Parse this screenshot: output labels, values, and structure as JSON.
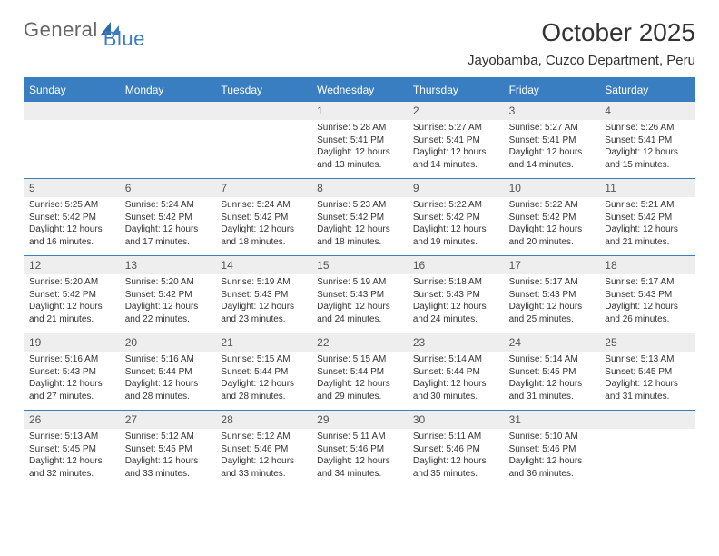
{
  "brand": {
    "part1": "General",
    "part2": "Blue"
  },
  "title": "October 2025",
  "location": "Jayobamba, Cuzco Department, Peru",
  "colors": {
    "header_bg": "#3a7ec2",
    "band_bg": "#eeeeee",
    "text": "#333333",
    "page_bg": "#ffffff"
  },
  "dow": [
    "Sunday",
    "Monday",
    "Tuesday",
    "Wednesday",
    "Thursday",
    "Friday",
    "Saturday"
  ],
  "weeks": [
    [
      {},
      {},
      {},
      {
        "n": "1",
        "sr": "Sunrise: 5:28 AM",
        "ss": "Sunset: 5:41 PM",
        "d1": "Daylight: 12 hours",
        "d2": "and 13 minutes."
      },
      {
        "n": "2",
        "sr": "Sunrise: 5:27 AM",
        "ss": "Sunset: 5:41 PM",
        "d1": "Daylight: 12 hours",
        "d2": "and 14 minutes."
      },
      {
        "n": "3",
        "sr": "Sunrise: 5:27 AM",
        "ss": "Sunset: 5:41 PM",
        "d1": "Daylight: 12 hours",
        "d2": "and 14 minutes."
      },
      {
        "n": "4",
        "sr": "Sunrise: 5:26 AM",
        "ss": "Sunset: 5:41 PM",
        "d1": "Daylight: 12 hours",
        "d2": "and 15 minutes."
      }
    ],
    [
      {
        "n": "5",
        "sr": "Sunrise: 5:25 AM",
        "ss": "Sunset: 5:42 PM",
        "d1": "Daylight: 12 hours",
        "d2": "and 16 minutes."
      },
      {
        "n": "6",
        "sr": "Sunrise: 5:24 AM",
        "ss": "Sunset: 5:42 PM",
        "d1": "Daylight: 12 hours",
        "d2": "and 17 minutes."
      },
      {
        "n": "7",
        "sr": "Sunrise: 5:24 AM",
        "ss": "Sunset: 5:42 PM",
        "d1": "Daylight: 12 hours",
        "d2": "and 18 minutes."
      },
      {
        "n": "8",
        "sr": "Sunrise: 5:23 AM",
        "ss": "Sunset: 5:42 PM",
        "d1": "Daylight: 12 hours",
        "d2": "and 18 minutes."
      },
      {
        "n": "9",
        "sr": "Sunrise: 5:22 AM",
        "ss": "Sunset: 5:42 PM",
        "d1": "Daylight: 12 hours",
        "d2": "and 19 minutes."
      },
      {
        "n": "10",
        "sr": "Sunrise: 5:22 AM",
        "ss": "Sunset: 5:42 PM",
        "d1": "Daylight: 12 hours",
        "d2": "and 20 minutes."
      },
      {
        "n": "11",
        "sr": "Sunrise: 5:21 AM",
        "ss": "Sunset: 5:42 PM",
        "d1": "Daylight: 12 hours",
        "d2": "and 21 minutes."
      }
    ],
    [
      {
        "n": "12",
        "sr": "Sunrise: 5:20 AM",
        "ss": "Sunset: 5:42 PM",
        "d1": "Daylight: 12 hours",
        "d2": "and 21 minutes."
      },
      {
        "n": "13",
        "sr": "Sunrise: 5:20 AM",
        "ss": "Sunset: 5:42 PM",
        "d1": "Daylight: 12 hours",
        "d2": "and 22 minutes."
      },
      {
        "n": "14",
        "sr": "Sunrise: 5:19 AM",
        "ss": "Sunset: 5:43 PM",
        "d1": "Daylight: 12 hours",
        "d2": "and 23 minutes."
      },
      {
        "n": "15",
        "sr": "Sunrise: 5:19 AM",
        "ss": "Sunset: 5:43 PM",
        "d1": "Daylight: 12 hours",
        "d2": "and 24 minutes."
      },
      {
        "n": "16",
        "sr": "Sunrise: 5:18 AM",
        "ss": "Sunset: 5:43 PM",
        "d1": "Daylight: 12 hours",
        "d2": "and 24 minutes."
      },
      {
        "n": "17",
        "sr": "Sunrise: 5:17 AM",
        "ss": "Sunset: 5:43 PM",
        "d1": "Daylight: 12 hours",
        "d2": "and 25 minutes."
      },
      {
        "n": "18",
        "sr": "Sunrise: 5:17 AM",
        "ss": "Sunset: 5:43 PM",
        "d1": "Daylight: 12 hours",
        "d2": "and 26 minutes."
      }
    ],
    [
      {
        "n": "19",
        "sr": "Sunrise: 5:16 AM",
        "ss": "Sunset: 5:43 PM",
        "d1": "Daylight: 12 hours",
        "d2": "and 27 minutes."
      },
      {
        "n": "20",
        "sr": "Sunrise: 5:16 AM",
        "ss": "Sunset: 5:44 PM",
        "d1": "Daylight: 12 hours",
        "d2": "and 28 minutes."
      },
      {
        "n": "21",
        "sr": "Sunrise: 5:15 AM",
        "ss": "Sunset: 5:44 PM",
        "d1": "Daylight: 12 hours",
        "d2": "and 28 minutes."
      },
      {
        "n": "22",
        "sr": "Sunrise: 5:15 AM",
        "ss": "Sunset: 5:44 PM",
        "d1": "Daylight: 12 hours",
        "d2": "and 29 minutes."
      },
      {
        "n": "23",
        "sr": "Sunrise: 5:14 AM",
        "ss": "Sunset: 5:44 PM",
        "d1": "Daylight: 12 hours",
        "d2": "and 30 minutes."
      },
      {
        "n": "24",
        "sr": "Sunrise: 5:14 AM",
        "ss": "Sunset: 5:45 PM",
        "d1": "Daylight: 12 hours",
        "d2": "and 31 minutes."
      },
      {
        "n": "25",
        "sr": "Sunrise: 5:13 AM",
        "ss": "Sunset: 5:45 PM",
        "d1": "Daylight: 12 hours",
        "d2": "and 31 minutes."
      }
    ],
    [
      {
        "n": "26",
        "sr": "Sunrise: 5:13 AM",
        "ss": "Sunset: 5:45 PM",
        "d1": "Daylight: 12 hours",
        "d2": "and 32 minutes."
      },
      {
        "n": "27",
        "sr": "Sunrise: 5:12 AM",
        "ss": "Sunset: 5:45 PM",
        "d1": "Daylight: 12 hours",
        "d2": "and 33 minutes."
      },
      {
        "n": "28",
        "sr": "Sunrise: 5:12 AM",
        "ss": "Sunset: 5:46 PM",
        "d1": "Daylight: 12 hours",
        "d2": "and 33 minutes."
      },
      {
        "n": "29",
        "sr": "Sunrise: 5:11 AM",
        "ss": "Sunset: 5:46 PM",
        "d1": "Daylight: 12 hours",
        "d2": "and 34 minutes."
      },
      {
        "n": "30",
        "sr": "Sunrise: 5:11 AM",
        "ss": "Sunset: 5:46 PM",
        "d1": "Daylight: 12 hours",
        "d2": "and 35 minutes."
      },
      {
        "n": "31",
        "sr": "Sunrise: 5:10 AM",
        "ss": "Sunset: 5:46 PM",
        "d1": "Daylight: 12 hours",
        "d2": "and 36 minutes."
      },
      {}
    ]
  ]
}
